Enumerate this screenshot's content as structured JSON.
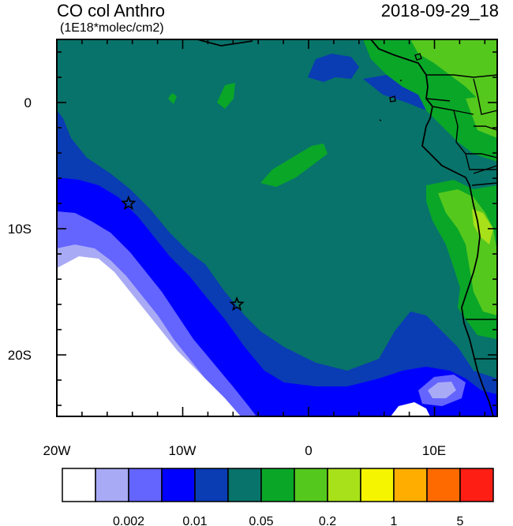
{
  "header": {
    "title": "CO col Anthro",
    "units": "(1E18*molec/cm2)",
    "datetime": "2018-09-29_18"
  },
  "axes": {
    "x_labels": [
      "20W",
      "10W",
      "0",
      "10E"
    ],
    "y_labels": [
      "0",
      "10S",
      "20S"
    ]
  },
  "colorbar": {
    "colors": [
      "#ffffff",
      "#a9aaf5",
      "#6464ff",
      "#0000ff",
      "#0a3cb4",
      "#08736a",
      "#0aa628",
      "#55c81e",
      "#a8e01a",
      "#f5f500",
      "#ffae00",
      "#ff6a00",
      "#ff1e14"
    ],
    "labels": [
      "0.002",
      "0.01",
      "0.05",
      "0.2",
      "1",
      "5"
    ]
  },
  "markers": [
    {
      "type": "star",
      "lon": -14.3,
      "lat": -8.0
    },
    {
      "type": "star",
      "lon": -5.7,
      "lat": -16.0
    }
  ]
}
